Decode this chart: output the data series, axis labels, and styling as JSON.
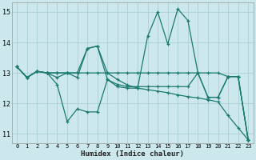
{
  "xlabel": "Humidex (Indice chaleur)",
  "bg_color": "#cce8ed",
  "grid_color": "#aacfd6",
  "line_color": "#1a7a6e",
  "xlim": [
    -0.5,
    23.5
  ],
  "ylim": [
    10.7,
    15.3
  ],
  "yticks": [
    11,
    12,
    13,
    14,
    15
  ],
  "xticks": [
    0,
    1,
    2,
    3,
    4,
    5,
    6,
    7,
    8,
    9,
    10,
    11,
    12,
    13,
    14,
    15,
    16,
    17,
    18,
    19,
    20,
    21,
    22,
    23
  ],
  "line1": [
    13.2,
    12.85,
    13.05,
    13.0,
    12.62,
    11.4,
    11.82,
    11.72,
    11.72,
    12.78,
    12.55,
    12.5,
    12.5,
    14.2,
    15.0,
    13.95,
    15.1,
    14.72,
    13.0,
    12.2,
    12.2,
    12.88,
    12.88,
    10.8
  ],
  "line2": [
    13.2,
    12.85,
    13.05,
    13.0,
    13.0,
    13.0,
    13.0,
    13.8,
    13.88,
    13.0,
    13.0,
    13.0,
    13.0,
    13.0,
    13.0,
    13.0,
    13.0,
    13.0,
    13.0,
    13.0,
    13.0,
    12.88,
    12.88,
    10.8
  ],
  "line3": [
    13.2,
    12.85,
    13.05,
    13.0,
    12.85,
    13.0,
    12.85,
    13.8,
    13.88,
    12.78,
    12.62,
    12.55,
    12.55,
    12.55,
    12.55,
    12.55,
    12.55,
    12.55,
    13.0,
    12.2,
    12.2,
    12.88,
    12.88,
    10.8
  ],
  "line4": [
    13.2,
    12.85,
    13.05,
    13.0,
    13.0,
    13.0,
    13.0,
    13.0,
    13.0,
    13.0,
    12.78,
    12.6,
    12.5,
    12.45,
    12.4,
    12.35,
    12.28,
    12.22,
    12.18,
    12.12,
    12.05,
    11.6,
    11.2,
    10.8
  ]
}
